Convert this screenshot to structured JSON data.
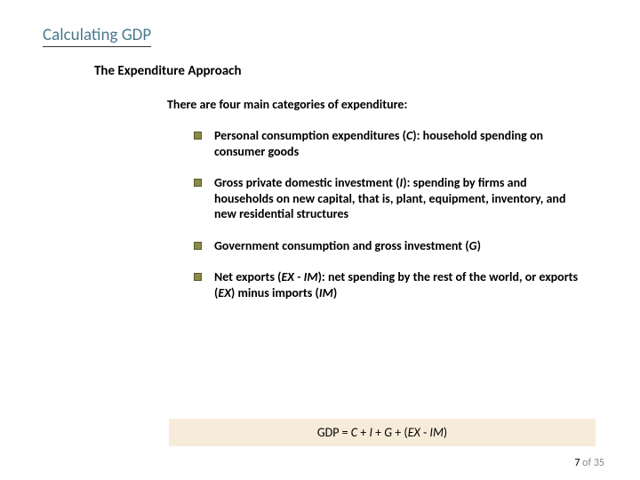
{
  "title": "Calculating GDP",
  "subtitle": "The Expenditure Approach",
  "intro": "There are four main categories of expenditure:",
  "bullets": [
    {
      "html": "Personal consumption expenditures (<span class='italic'>C</span>): household spending on consumer goods"
    },
    {
      "html": "Gross private domestic investment (<span class='italic'>I</span>): spending by firms and households on new capital, that is, plant, equipment, inventory, and new residential structures"
    },
    {
      "html": "Government consumption and gross investment (<span class='italic'>G</span>)"
    },
    {
      "html": "Net exports (<span class='italic'>EX - IM</span>):  net spending by the rest of the world, or exports (<span class='italic'>EX</span>) minus imports (<span class='italic'>IM</span>)"
    }
  ],
  "formula_html": "GDP = <span class='italic'>C</span> + <span class='italic'>I</span> + <span class='italic'>G</span> + (<span class='italic'>EX</span> - <span class='italic'>IM</span>)",
  "page_current": "7",
  "page_sep": " of ",
  "page_total": "35",
  "colors": {
    "title_color": "#4a7a8c",
    "title_underline": "#333333",
    "bullet_fill": "#8a8a4a",
    "bullet_border": "#5a5a2a",
    "formula_bg": "#f7ecd9",
    "text": "#000000",
    "muted": "#888888",
    "background": "#ffffff"
  }
}
